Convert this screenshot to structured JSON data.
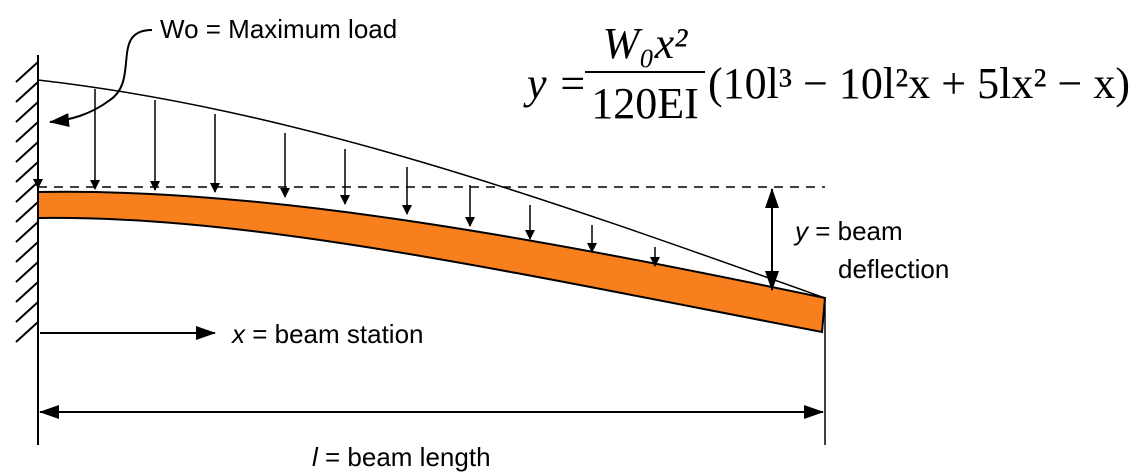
{
  "load_label": "Wo = Maximum load",
  "formula": {
    "lhs": "y =",
    "numerator": "W₀x²",
    "denominator": "120EI",
    "factor": "(10l³ − 10l²x + 5lx² − x)"
  },
  "deflection_label": {
    "variable": "y",
    "text": "= beam",
    "line2": "deflection"
  },
  "station_label": {
    "variable": "x",
    "text": "= beam station"
  },
  "length_label": {
    "variable": "l",
    "text": "= beam length"
  }
}
